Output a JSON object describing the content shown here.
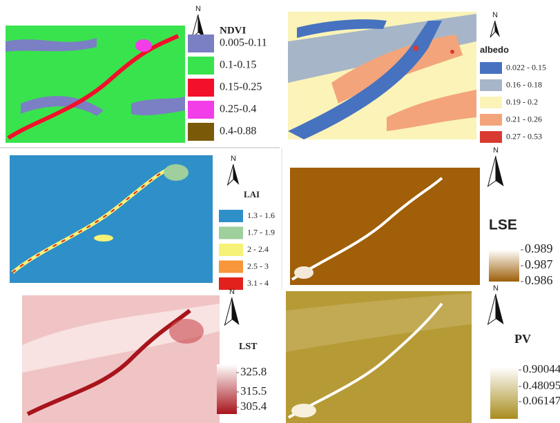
{
  "panels": [
    {
      "title": "NDVI",
      "north": "N",
      "legend": [
        {
          "label": "0.005-0.11",
          "color": "#7b7fc4"
        },
        {
          "label": "0.1-0.15",
          "color": "#39e34d"
        },
        {
          "label": "0.15-0.25",
          "color": "#f2102a"
        },
        {
          "label": "0.25-0.4",
          "color": "#f23ee8"
        },
        {
          "label": "0.4-0.88",
          "color": "#7a5a08"
        }
      ]
    },
    {
      "title": "albedo",
      "north": "N",
      "legend": [
        {
          "label": "0.022 - 0.15",
          "color": "#4672c0"
        },
        {
          "label": "0.16 - 0.18",
          "color": "#a6b6c8"
        },
        {
          "label": "0.19 - 0.2",
          "color": "#fbf3b8"
        },
        {
          "label": "0.21 - 0.26",
          "color": "#f4a47a"
        },
        {
          "label": "0.27 - 0.53",
          "color": "#d93a32"
        }
      ]
    },
    {
      "title": "LAI",
      "north": "N",
      "legend": [
        {
          "label": "1.3 - 1.6",
          "color": "#2f8fc8"
        },
        {
          "label": "1.7 - 1.9",
          "color": "#9fcf9c"
        },
        {
          "label": "2 - 2.4",
          "color": "#f6f278"
        },
        {
          "label": "2.5 - 3",
          "color": "#f7963a"
        },
        {
          "label": "3.1 - 4",
          "color": "#e2211c"
        }
      ]
    },
    {
      "title": "LSE",
      "north": "N",
      "scale": {
        "labels": [
          "0.989",
          "0.987",
          "0.986"
        ],
        "colors": [
          "#ffffff",
          "#9c5f08"
        ]
      }
    },
    {
      "title": "LST",
      "north": "N",
      "scale": {
        "labels": [
          "325.8",
          "315.5",
          "305.4"
        ],
        "colors": [
          "#ffffff",
          "#a8141c"
        ]
      }
    },
    {
      "title": "PV",
      "north": "N",
      "scale": {
        "labels": [
          "0.90044",
          "0.48095",
          "0.06147"
        ],
        "colors": [
          "#ffffff",
          "#a88c1e"
        ]
      }
    }
  ]
}
